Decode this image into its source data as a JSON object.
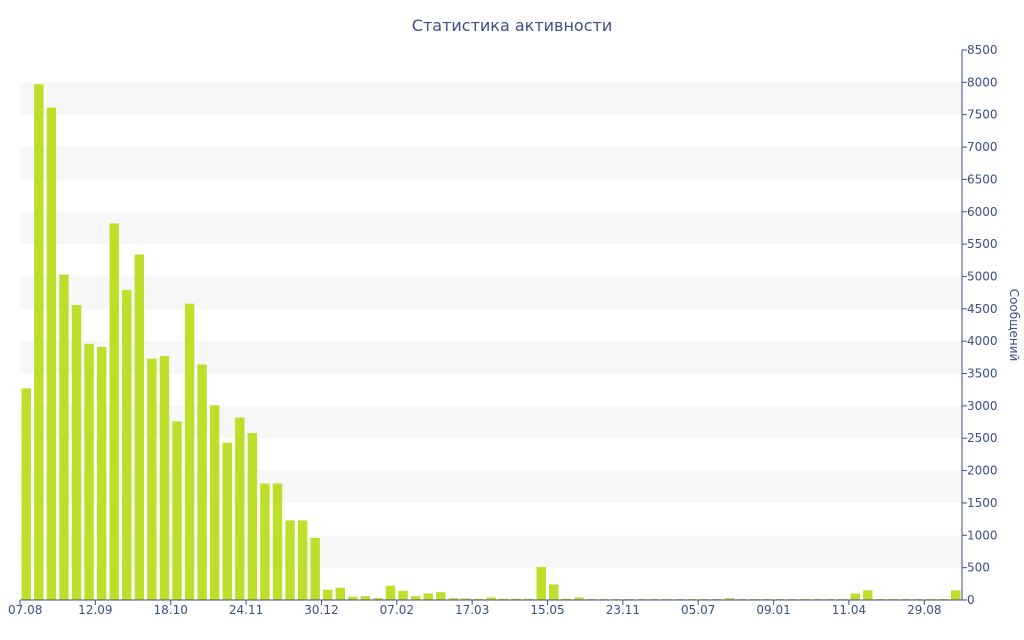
{
  "chart_data": {
    "type": "bar",
    "title": "Статистика активности",
    "xlabel": "",
    "ylabel": "Сообщений",
    "y_axis_side": "right",
    "ylim": [
      0,
      8500
    ],
    "y_ticks": [
      0,
      500,
      1000,
      1500,
      2000,
      2500,
      3000,
      3500,
      4000,
      4500,
      5000,
      5500,
      6000,
      6500,
      7000,
      7500,
      8000,
      8500
    ],
    "x_tick_labels": [
      "07.08",
      "12.09",
      "18.10",
      "24.11",
      "30.12",
      "07.02",
      "17.03",
      "15.05",
      "23.11",
      "05.07",
      "09.01",
      "11.04",
      "29.08"
    ],
    "x_tick_positions": [
      0,
      6,
      12,
      18,
      24,
      30,
      36,
      42,
      48,
      54,
      60,
      66,
      72
    ],
    "grid": "horizontal alternating bands",
    "bar_color": "#bddf2a",
    "values": [
      3270,
      7970,
      7610,
      5030,
      4560,
      3960,
      3910,
      5820,
      4790,
      5340,
      3730,
      3770,
      2760,
      4580,
      3640,
      3010,
      2430,
      2820,
      2580,
      1800,
      1800,
      1230,
      1230,
      960,
      160,
      190,
      50,
      60,
      30,
      220,
      140,
      60,
      100,
      120,
      30,
      25,
      20,
      40,
      20,
      20,
      20,
      510,
      240,
      20,
      40,
      15,
      15,
      15,
      15,
      15,
      15,
      15,
      15,
      15,
      15,
      15,
      30,
      15,
      15,
      15,
      15,
      15,
      15,
      15,
      15,
      15,
      100,
      150,
      15,
      15,
      15,
      15,
      15,
      15,
      150
    ]
  }
}
